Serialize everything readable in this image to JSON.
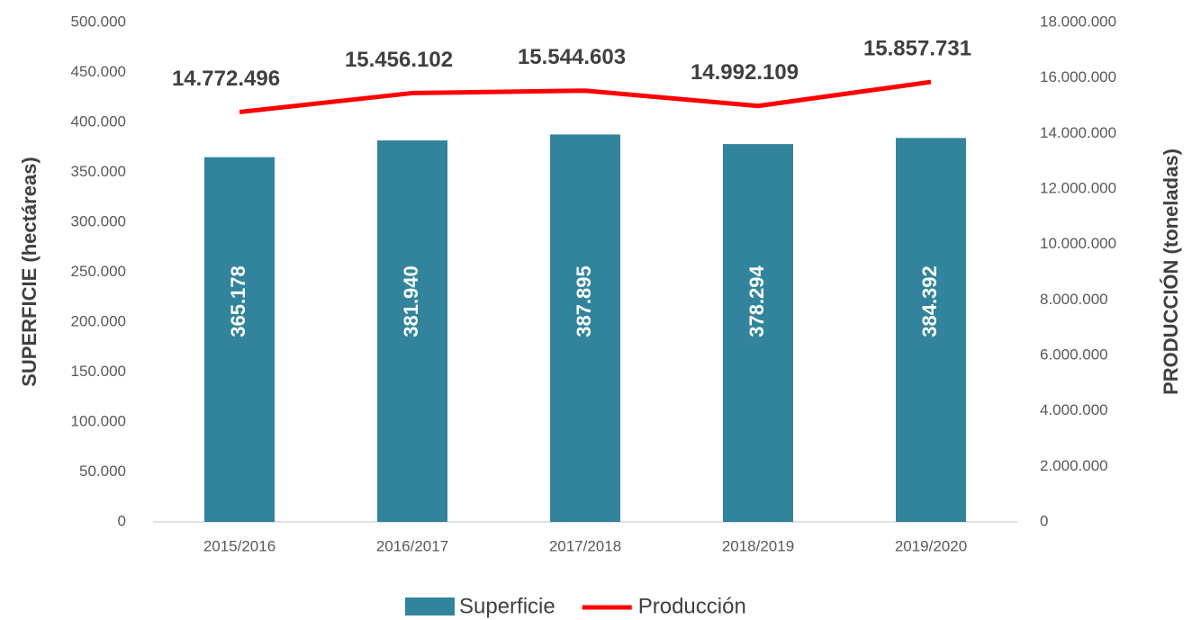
{
  "chart_data": {
    "type": "bar_line",
    "categories": [
      "2015/2016",
      "2016/2017",
      "2017/2018",
      "2018/2019",
      "2019/2020"
    ],
    "ylabel": "SUPERFICIE (hectáreas)",
    "y2label": "PRODUCCIÓN (toneladas)",
    "ylim": [
      0,
      500000
    ],
    "yticks": [
      0,
      {
        "value": 50000,
        "label": "50.000"
      },
      {
        "value": 100000,
        "label": "100.000"
      },
      {
        "value": 150000,
        "label": "150.000"
      },
      {
        "value": 200000,
        "label": "200.000"
      },
      {
        "value": 250000,
        "label": "250.000"
      },
      {
        "value": 300000,
        "label": "300.000"
      },
      {
        "value": 350000,
        "label": "350.000"
      },
      {
        "value": 400000,
        "label": "400.000"
      },
      {
        "value": 450000,
        "label": "450.000"
      },
      {
        "value": 500000,
        "label": "500.000"
      }
    ],
    "y2lim": [
      0,
      18000000
    ],
    "y2ticks": [
      0,
      {
        "value": 2000000,
        "label": "2.000.000"
      },
      {
        "value": 4000000,
        "label": "4.000.000"
      },
      {
        "value": 6000000,
        "label": "6.000.000"
      },
      {
        "value": 8000000,
        "label": "8.000.000"
      },
      {
        "value": 10000000,
        "label": "10.000.000"
      },
      {
        "value": 12000000,
        "label": "12.000.000"
      },
      {
        "value": 14000000,
        "label": "14.000.000"
      },
      {
        "value": 16000000,
        "label": "16.000.000"
      },
      {
        "value": 18000000,
        "label": "18.000.000"
      }
    ],
    "grid": false,
    "legend": "bottom",
    "series": [
      {
        "name": "Superficie",
        "type": "bar",
        "color": "#31849b",
        "values": [
          365178,
          381940,
          387895,
          378294,
          384392
        ],
        "value_labels": [
          "365.178",
          "381.940",
          "387.895",
          "378.294",
          "384.392"
        ]
      },
      {
        "name": "Producción",
        "type": "line",
        "axis": "y2",
        "color": "#ff0000",
        "values": [
          14772496,
          15456102,
          15544603,
          14992109,
          15857731
        ],
        "value_labels": [
          "14.772.496",
          "15.456.102",
          "15.544.603",
          "14.992.109",
          "15.857.731"
        ]
      }
    ]
  }
}
